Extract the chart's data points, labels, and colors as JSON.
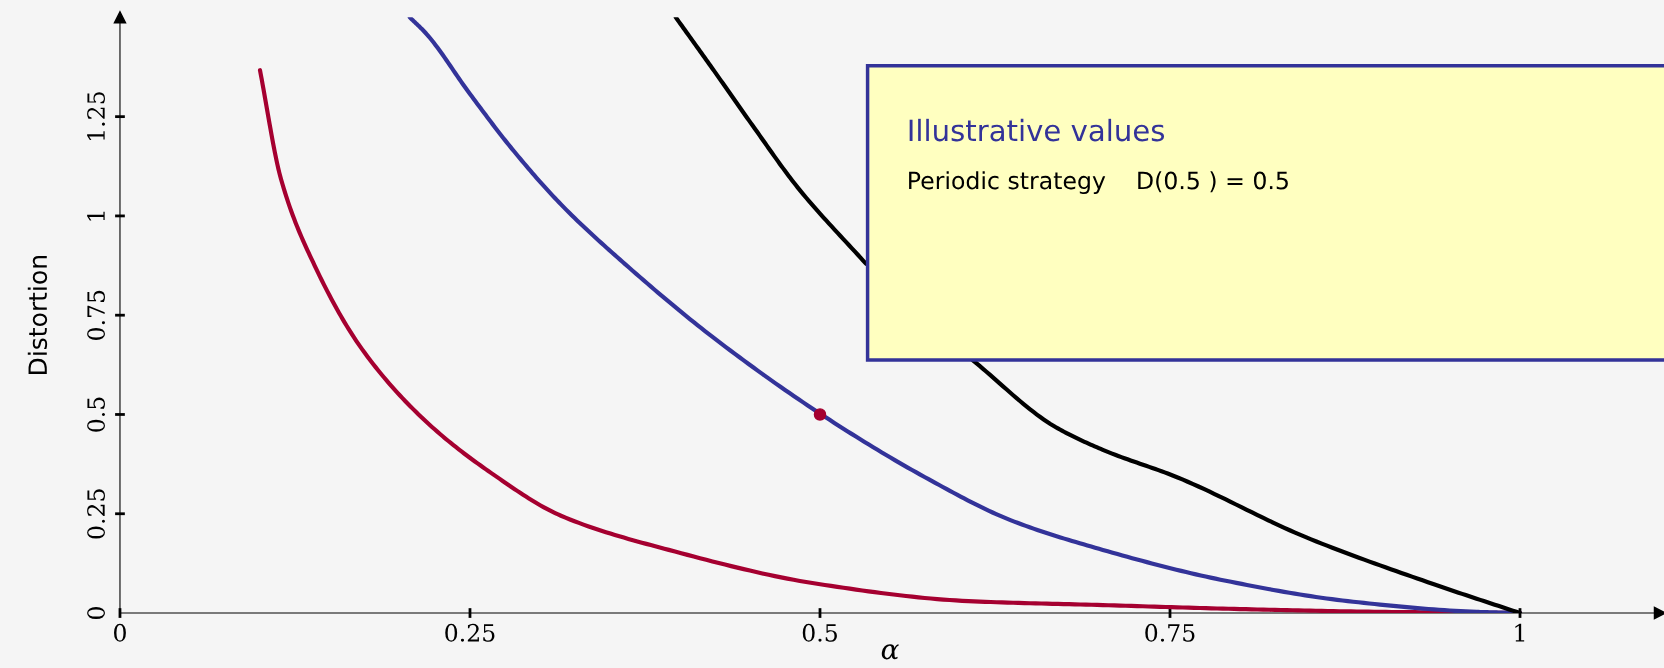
{
  "chart_data": {
    "type": "line",
    "xlabel": "α",
    "ylabel": "Distortion",
    "xlim": [
      0,
      1.1
    ],
    "ylim": [
      0,
      1.5
    ],
    "xticks": [
      0,
      0.25,
      0.5,
      0.75,
      1
    ],
    "yticks": [
      0,
      0.25,
      0.5,
      0.75,
      1,
      1.25
    ],
    "grid": false,
    "legend": false,
    "marker": "none",
    "line_style": "solid",
    "series": [
      {
        "color": "#a50030",
        "x": [
          0.1,
          0.115,
          0.14,
          0.173,
          0.219,
          0.265,
          0.315,
          0.392,
          0.499,
          0.606,
          0.702,
          0.8,
          0.9,
          1
        ],
        "values": [
          1.367,
          1.093,
          0.868,
          0.664,
          0.481,
          0.353,
          0.245,
          0.159,
          0.073,
          0.03,
          0.02,
          0.01,
          0.003,
          0
        ]
      },
      {
        "color": "#333399",
        "x": [
          0.207,
          0.219,
          0.25,
          0.28,
          0.315,
          0.361,
          0.423,
          0.501,
          0.575,
          0.636,
          0.702,
          0.786,
          0.877,
          0.969,
          1
        ],
        "values": [
          1.5,
          1.458,
          1.307,
          1.169,
          1.029,
          0.878,
          0.696,
          0.5,
          0.342,
          0.234,
          0.159,
          0.084,
          0.03,
          0.003,
          0
        ]
      },
      {
        "color": "#000000",
        "x": [
          0.397,
          0.423,
          0.453,
          0.484,
          0.533,
          0.57,
          0.609,
          0.667,
          0.702,
          0.755,
          0.847,
          0.938,
          1
        ],
        "values": [
          1.5,
          1.372,
          1.222,
          1.072,
          0.879,
          null,
          0.637,
          0.471,
          0.411,
          0.342,
          0.191,
          0.073,
          0
        ]
      },
      {
        "type": "scatter",
        "color": "#a50030",
        "marker": "circle",
        "x": [
          0.5
        ],
        "values": [
          0.5
        ]
      }
    ],
    "annotations": [
      "Illustrative values",
      "Periodic strategy    D(0.5 ) = 0.5"
    ]
  }
}
